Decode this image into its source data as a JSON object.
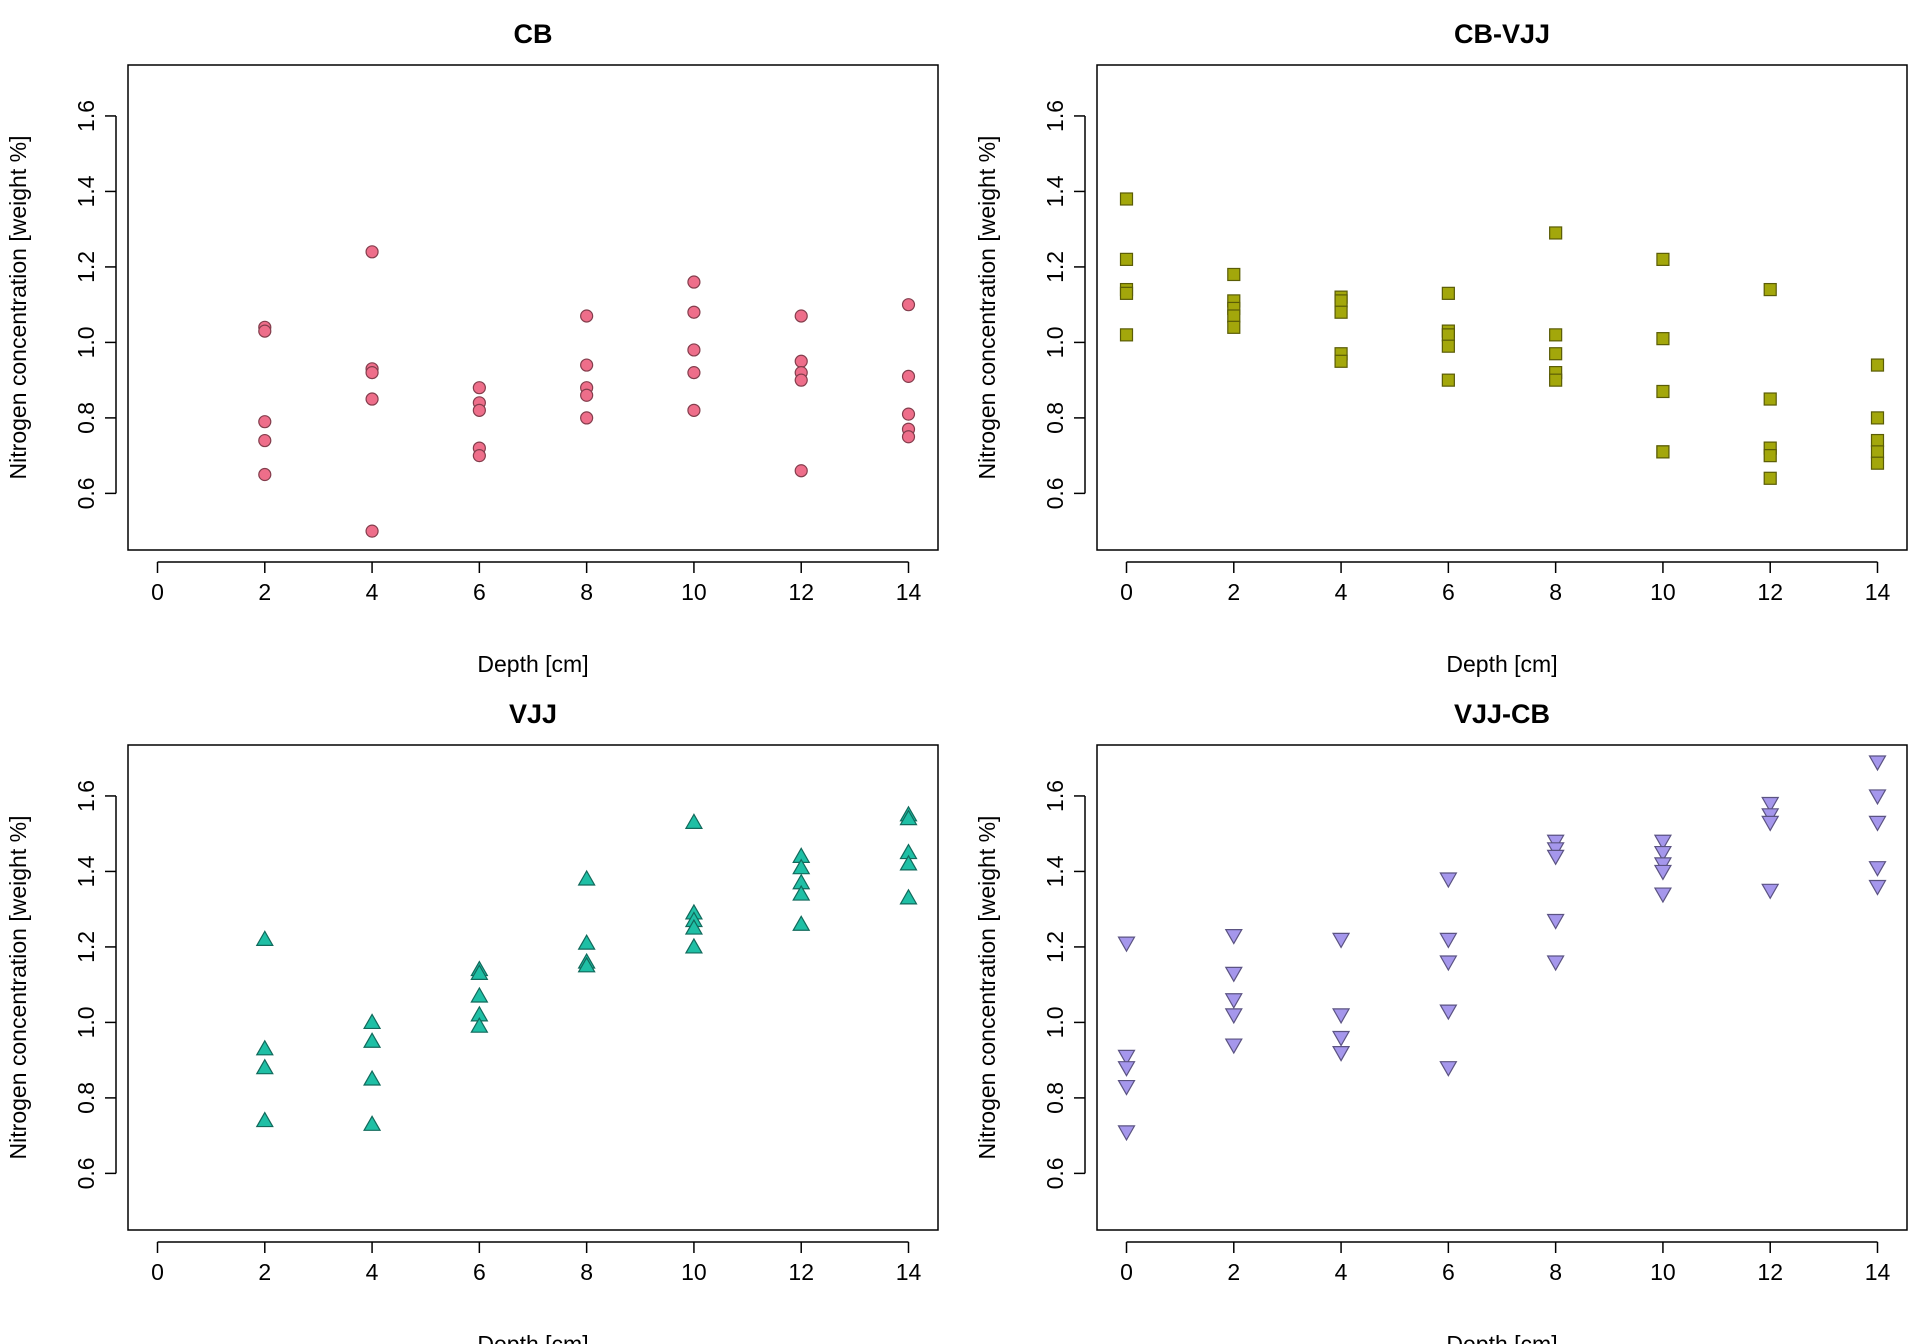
{
  "figure": {
    "layout": "2x2 scatter panels"
  },
  "chart_data": [
    {
      "type": "scatter",
      "title": "CB",
      "xlabel": "Depth [cm]",
      "ylabel": "Nitrogen concentration [weight %]",
      "xlim": [
        -0.55,
        14.55
      ],
      "ylim": [
        0.45,
        1.735
      ],
      "xticks": [
        "0",
        "2",
        "4",
        "6",
        "8",
        "10",
        "12",
        "14"
      ],
      "yticks": [
        "0.6",
        "0.8",
        "1.0",
        "1.2",
        "1.4",
        "1.6"
      ],
      "grid": false,
      "marker": "circle",
      "color": "#ee6e8a",
      "points": [
        {
          "x": 2,
          "y": 1.04
        },
        {
          "x": 2,
          "y": 1.03
        },
        {
          "x": 2,
          "y": 0.79
        },
        {
          "x": 2,
          "y": 0.74
        },
        {
          "x": 2,
          "y": 0.65
        },
        {
          "x": 4,
          "y": 1.24
        },
        {
          "x": 4,
          "y": 0.93
        },
        {
          "x": 4,
          "y": 0.92
        },
        {
          "x": 4,
          "y": 0.85
        },
        {
          "x": 4,
          "y": 0.5
        },
        {
          "x": 6,
          "y": 0.88
        },
        {
          "x": 6,
          "y": 0.84
        },
        {
          "x": 6,
          "y": 0.82
        },
        {
          "x": 6,
          "y": 0.72
        },
        {
          "x": 6,
          "y": 0.7
        },
        {
          "x": 8,
          "y": 1.07
        },
        {
          "x": 8,
          "y": 0.94
        },
        {
          "x": 8,
          "y": 0.88
        },
        {
          "x": 8,
          "y": 0.86
        },
        {
          "x": 8,
          "y": 0.8
        },
        {
          "x": 10,
          "y": 1.16
        },
        {
          "x": 10,
          "y": 1.08
        },
        {
          "x": 10,
          "y": 0.98
        },
        {
          "x": 10,
          "y": 0.92
        },
        {
          "x": 10,
          "y": 0.82
        },
        {
          "x": 12,
          "y": 1.07
        },
        {
          "x": 12,
          "y": 0.95
        },
        {
          "x": 12,
          "y": 0.92
        },
        {
          "x": 12,
          "y": 0.9
        },
        {
          "x": 12,
          "y": 0.66
        },
        {
          "x": 14,
          "y": 1.1
        },
        {
          "x": 14,
          "y": 0.91
        },
        {
          "x": 14,
          "y": 0.81
        },
        {
          "x": 14,
          "y": 0.77
        },
        {
          "x": 14,
          "y": 0.75
        }
      ]
    },
    {
      "type": "scatter",
      "title": "CB-VJJ",
      "xlabel": "Depth [cm]",
      "ylabel": "Nitrogen concentration [weight %]",
      "xlim": [
        -0.55,
        14.55
      ],
      "ylim": [
        0.45,
        1.735
      ],
      "xticks": [
        "0",
        "2",
        "4",
        "6",
        "8",
        "10",
        "12",
        "14"
      ],
      "yticks": [
        "0.6",
        "0.8",
        "1.0",
        "1.2",
        "1.4",
        "1.6"
      ],
      "grid": false,
      "marker": "square",
      "color": "#a3a70b",
      "points": [
        {
          "x": 0,
          "y": 1.38
        },
        {
          "x": 0,
          "y": 1.22
        },
        {
          "x": 0,
          "y": 1.14
        },
        {
          "x": 0,
          "y": 1.13
        },
        {
          "x": 0,
          "y": 1.02
        },
        {
          "x": 2,
          "y": 1.18
        },
        {
          "x": 2,
          "y": 1.11
        },
        {
          "x": 2,
          "y": 1.09
        },
        {
          "x": 2,
          "y": 1.07
        },
        {
          "x": 2,
          "y": 1.04
        },
        {
          "x": 4,
          "y": 1.12
        },
        {
          "x": 4,
          "y": 1.11
        },
        {
          "x": 4,
          "y": 1.08
        },
        {
          "x": 4,
          "y": 0.97
        },
        {
          "x": 4,
          "y": 0.95
        },
        {
          "x": 6,
          "y": 1.13
        },
        {
          "x": 6,
          "y": 1.03
        },
        {
          "x": 6,
          "y": 1.02
        },
        {
          "x": 6,
          "y": 0.99
        },
        {
          "x": 6,
          "y": 0.9
        },
        {
          "x": 8,
          "y": 1.29
        },
        {
          "x": 8,
          "y": 1.02
        },
        {
          "x": 8,
          "y": 0.97
        },
        {
          "x": 8,
          "y": 0.92
        },
        {
          "x": 8,
          "y": 0.9
        },
        {
          "x": 10,
          "y": 1.22
        },
        {
          "x": 10,
          "y": 1.01
        },
        {
          "x": 10,
          "y": 0.87
        },
        {
          "x": 10,
          "y": 0.71
        },
        {
          "x": 10,
          "y": 0.71
        },
        {
          "x": 12,
          "y": 1.14
        },
        {
          "x": 12,
          "y": 0.85
        },
        {
          "x": 12,
          "y": 0.72
        },
        {
          "x": 12,
          "y": 0.7
        },
        {
          "x": 12,
          "y": 0.64
        },
        {
          "x": 14,
          "y": 0.94
        },
        {
          "x": 14,
          "y": 0.8
        },
        {
          "x": 14,
          "y": 0.74
        },
        {
          "x": 14,
          "y": 0.71
        },
        {
          "x": 14,
          "y": 0.68
        }
      ]
    },
    {
      "type": "scatter",
      "title": "VJJ",
      "xlabel": "Depth [cm]",
      "ylabel": "Nitrogen concentration [weight %]",
      "xlim": [
        -0.55,
        14.55
      ],
      "ylim": [
        0.45,
        1.735
      ],
      "xticks": [
        "0",
        "2",
        "4",
        "6",
        "8",
        "10",
        "12",
        "14"
      ],
      "yticks": [
        "0.6",
        "0.8",
        "1.0",
        "1.2",
        "1.4",
        "1.6"
      ],
      "grid": false,
      "marker": "triangle-up",
      "color": "#1fbfa5",
      "points": [
        {
          "x": 2,
          "y": 1.22
        },
        {
          "x": 2,
          "y": 0.93
        },
        {
          "x": 2,
          "y": 0.88
        },
        {
          "x": 2,
          "y": 0.74
        },
        {
          "x": 4,
          "y": 1.0
        },
        {
          "x": 4,
          "y": 0.95
        },
        {
          "x": 4,
          "y": 0.85
        },
        {
          "x": 4,
          "y": 0.73
        },
        {
          "x": 6,
          "y": 1.14
        },
        {
          "x": 6,
          "y": 1.13
        },
        {
          "x": 6,
          "y": 1.07
        },
        {
          "x": 6,
          "y": 1.02
        },
        {
          "x": 6,
          "y": 0.99
        },
        {
          "x": 8,
          "y": 1.38
        },
        {
          "x": 8,
          "y": 1.21
        },
        {
          "x": 8,
          "y": 1.16
        },
        {
          "x": 8,
          "y": 1.15
        },
        {
          "x": 10,
          "y": 1.53
        },
        {
          "x": 10,
          "y": 1.29
        },
        {
          "x": 10,
          "y": 1.27
        },
        {
          "x": 10,
          "y": 1.25
        },
        {
          "x": 10,
          "y": 1.2
        },
        {
          "x": 12,
          "y": 1.44
        },
        {
          "x": 12,
          "y": 1.41
        },
        {
          "x": 12,
          "y": 1.37
        },
        {
          "x": 12,
          "y": 1.34
        },
        {
          "x": 12,
          "y": 1.26
        },
        {
          "x": 14,
          "y": 1.55
        },
        {
          "x": 14,
          "y": 1.54
        },
        {
          "x": 14,
          "y": 1.45
        },
        {
          "x": 14,
          "y": 1.42
        },
        {
          "x": 14,
          "y": 1.33
        }
      ]
    },
    {
      "type": "scatter",
      "title": "VJJ-CB",
      "xlabel": "Depth [cm]",
      "ylabel": "Nitrogen concentration [weight %]",
      "xlim": [
        -0.55,
        14.55
      ],
      "ylim": [
        0.45,
        1.735
      ],
      "xticks": [
        "0",
        "2",
        "4",
        "6",
        "8",
        "10",
        "12",
        "14"
      ],
      "yticks": [
        "0.6",
        "0.8",
        "1.0",
        "1.2",
        "1.4",
        "1.6"
      ],
      "grid": false,
      "marker": "triangle-down",
      "color": "#a597ec",
      "points": [
        {
          "x": 0,
          "y": 1.21
        },
        {
          "x": 0,
          "y": 0.91
        },
        {
          "x": 0,
          "y": 0.88
        },
        {
          "x": 0,
          "y": 0.83
        },
        {
          "x": 0,
          "y": 0.71
        },
        {
          "x": 2,
          "y": 1.23
        },
        {
          "x": 2,
          "y": 1.13
        },
        {
          "x": 2,
          "y": 1.06
        },
        {
          "x": 2,
          "y": 1.02
        },
        {
          "x": 2,
          "y": 0.94
        },
        {
          "x": 4,
          "y": 1.22
        },
        {
          "x": 4,
          "y": 1.02
        },
        {
          "x": 4,
          "y": 0.96
        },
        {
          "x": 4,
          "y": 0.92
        },
        {
          "x": 6,
          "y": 1.38
        },
        {
          "x": 6,
          "y": 1.22
        },
        {
          "x": 6,
          "y": 1.16
        },
        {
          "x": 6,
          "y": 1.03
        },
        {
          "x": 6,
          "y": 0.88
        },
        {
          "x": 8,
          "y": 1.48
        },
        {
          "x": 8,
          "y": 1.46
        },
        {
          "x": 8,
          "y": 1.44
        },
        {
          "x": 8,
          "y": 1.27
        },
        {
          "x": 8,
          "y": 1.16
        },
        {
          "x": 10,
          "y": 1.48
        },
        {
          "x": 10,
          "y": 1.45
        },
        {
          "x": 10,
          "y": 1.42
        },
        {
          "x": 10,
          "y": 1.4
        },
        {
          "x": 10,
          "y": 1.34
        },
        {
          "x": 12,
          "y": 1.58
        },
        {
          "x": 12,
          "y": 1.55
        },
        {
          "x": 12,
          "y": 1.53
        },
        {
          "x": 12,
          "y": 1.35
        },
        {
          "x": 14,
          "y": 1.69
        },
        {
          "x": 14,
          "y": 1.6
        },
        {
          "x": 14,
          "y": 1.53
        },
        {
          "x": 14,
          "y": 1.41
        },
        {
          "x": 14,
          "y": 1.36
        }
      ]
    }
  ]
}
